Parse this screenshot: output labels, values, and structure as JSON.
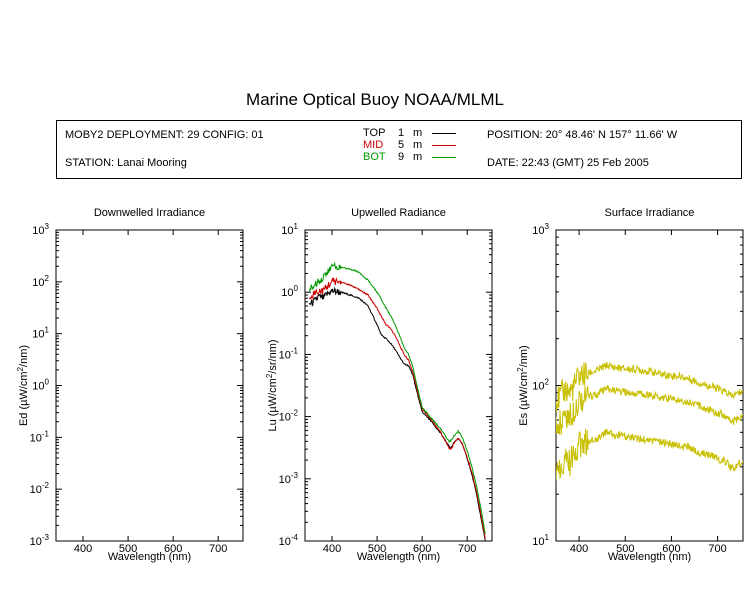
{
  "header": {
    "title": "Marine Optical Buoy NOAA/MLML",
    "deployment": "MOBY2 DEPLOYMENT: 29 CONFIG: 01",
    "station": "STATION: Lanai Mooring",
    "position": "POSITION: 20° 48.46' N   157° 11.66' W",
    "date": "DATE: 22:43 (GMT) 25 Feb 2005",
    "depths": [
      {
        "label": "TOP",
        "value": "1",
        "unit": "m",
        "color": "#000000"
      },
      {
        "label": "MID",
        "value": "5",
        "unit": "m",
        "color": "#cc0000"
      },
      {
        "label": "BOT",
        "value": "9",
        "unit": "m",
        "color": "#009900"
      }
    ]
  },
  "chart_data": [
    {
      "type": "line",
      "title": "Downwelled Irradiance",
      "xlabel": "Wavelength (nm)",
      "ylabel_main": "Ed  (µW/cm",
      "ylabel_sup": "2",
      "ylabel_end": "/nm)",
      "xlim": [
        340,
        755
      ],
      "xticks": [
        "400",
        "500",
        "600",
        "700"
      ],
      "ylim": [
        0.001,
        1000
      ],
      "yscale": "log",
      "yticks": [
        {
          "base": "10",
          "exp": "-3"
        },
        {
          "base": "10",
          "exp": "-2"
        },
        {
          "base": "10",
          "exp": "-1"
        },
        {
          "base": "10",
          "exp": "0"
        },
        {
          "base": "10",
          "exp": "1"
        },
        {
          "base": "10",
          "exp": "2"
        },
        {
          "base": "10",
          "exp": "3"
        }
      ],
      "series": []
    },
    {
      "type": "line",
      "title": "Upwelled Radiance",
      "xlabel": "Wavelength (nm)",
      "ylabel_main": "Lu  (µW/cm",
      "ylabel_sup": "2",
      "ylabel_end": "/sr/nm)",
      "xlim": [
        340,
        755
      ],
      "xticks": [
        "400",
        "500",
        "600",
        "700"
      ],
      "ylim": [
        0.0001,
        10
      ],
      "yscale": "log",
      "yticks": [
        {
          "base": "10",
          "exp": "-4"
        },
        {
          "base": "10",
          "exp": "-3"
        },
        {
          "base": "10",
          "exp": "-2"
        },
        {
          "base": "10",
          "exp": "-1"
        },
        {
          "base": "10",
          "exp": "0"
        },
        {
          "base": "10",
          "exp": "1"
        }
      ],
      "series": [
        {
          "color": "#000000",
          "x": [
            350,
            360,
            370,
            380,
            390,
            400,
            420,
            440,
            460,
            480,
            500,
            510,
            520,
            530,
            540,
            550,
            560,
            570,
            580,
            590,
            600,
            620,
            640,
            660,
            665,
            670,
            680,
            690,
            700,
            710,
            720,
            730,
            740
          ],
          "y": [
            0.65,
            0.7,
            0.85,
            0.8,
            0.95,
            1.05,
            1.0,
            0.9,
            0.8,
            0.6,
            0.3,
            0.2,
            0.18,
            0.15,
            0.12,
            0.09,
            0.07,
            0.065,
            0.045,
            0.022,
            0.012,
            0.0085,
            0.0055,
            0.0033,
            0.0032,
            0.0038,
            0.0045,
            0.0035,
            0.0021,
            0.0012,
            0.0006,
            0.00025,
            0.0001
          ]
        },
        {
          "color": "#cc0000",
          "x": [
            350,
            360,
            370,
            380,
            390,
            400,
            420,
            440,
            460,
            480,
            500,
            510,
            520,
            530,
            540,
            550,
            560,
            570,
            580,
            590,
            600,
            620,
            640,
            660,
            665,
            670,
            680,
            690,
            700,
            710,
            720,
            730,
            740
          ],
          "y": [
            0.85,
            0.95,
            1.05,
            1.05,
            1.25,
            1.5,
            1.45,
            1.3,
            1.1,
            0.9,
            0.55,
            0.4,
            0.3,
            0.26,
            0.2,
            0.14,
            0.1,
            0.08,
            0.05,
            0.025,
            0.0135,
            0.009,
            0.0058,
            0.0031,
            0.003,
            0.0037,
            0.0045,
            0.0035,
            0.0022,
            0.0013,
            0.00065,
            0.00028,
            0.00011
          ]
        },
        {
          "color": "#009900",
          "x": [
            350,
            360,
            370,
            380,
            390,
            400,
            420,
            440,
            460,
            480,
            500,
            510,
            520,
            530,
            540,
            550,
            560,
            570,
            580,
            590,
            600,
            620,
            640,
            660,
            665,
            670,
            680,
            690,
            700,
            710,
            720,
            730,
            740
          ],
          "y": [
            1.1,
            1.3,
            1.5,
            1.7,
            2.1,
            2.6,
            2.5,
            2.35,
            2.1,
            1.55,
            1.0,
            0.75,
            0.55,
            0.42,
            0.3,
            0.2,
            0.13,
            0.1,
            0.06,
            0.028,
            0.014,
            0.0095,
            0.0065,
            0.004,
            0.0042,
            0.0048,
            0.0058,
            0.0045,
            0.0028,
            0.0016,
            0.0008,
            0.00035,
            0.00013
          ]
        }
      ]
    },
    {
      "type": "line",
      "title": "Surface Irradiance",
      "xlabel": "Wavelength (nm)",
      "ylabel_main": "Es  (µW/cm",
      "ylabel_sup": "2",
      "ylabel_end": "/nm)",
      "xlim": [
        350,
        755
      ],
      "xticks": [
        "400",
        "500",
        "600",
        "700"
      ],
      "ylim": [
        10,
        1000
      ],
      "yscale": "log",
      "yticks": [
        {
          "base": "10",
          "exp": "1"
        },
        {
          "base": "10",
          "exp": "2"
        },
        {
          "base": "10",
          "exp": "3"
        }
      ],
      "series": [
        {
          "color": "#c8c000",
          "x": [
            350,
            360,
            370,
            380,
            390,
            400,
            420,
            440,
            460,
            480,
            500,
            520,
            540,
            560,
            580,
            600,
            620,
            640,
            660,
            680,
            700,
            720,
            730,
            740,
            755
          ],
          "y": [
            80,
            85,
            95,
            90,
            100,
            115,
            120,
            125,
            135,
            130,
            128,
            127,
            125,
            122,
            118,
            116,
            114,
            110,
            104,
            100,
            95,
            90,
            85,
            88,
            92
          ]
        },
        {
          "color": "#c8c000",
          "x": [
            350,
            360,
            370,
            380,
            390,
            400,
            420,
            440,
            460,
            480,
            500,
            520,
            540,
            560,
            580,
            600,
            620,
            640,
            660,
            680,
            700,
            720,
            730,
            740,
            755
          ],
          "y": [
            55,
            58,
            65,
            62,
            72,
            82,
            85,
            88,
            95,
            92,
            90,
            89,
            88,
            86,
            84,
            82,
            80,
            78,
            74,
            70,
            67,
            63,
            58,
            60,
            64
          ]
        },
        {
          "color": "#c8c000",
          "x": [
            350,
            360,
            370,
            380,
            390,
            400,
            420,
            440,
            460,
            480,
            500,
            520,
            540,
            560,
            580,
            600,
            620,
            640,
            660,
            680,
            700,
            720,
            730,
            740,
            755
          ],
          "y": [
            30,
            30,
            33,
            32,
            36,
            42,
            44,
            46,
            50,
            48,
            47,
            46,
            45,
            44,
            43,
            42,
            41,
            40,
            37,
            36,
            34,
            32,
            29,
            30,
            33
          ]
        }
      ]
    }
  ]
}
